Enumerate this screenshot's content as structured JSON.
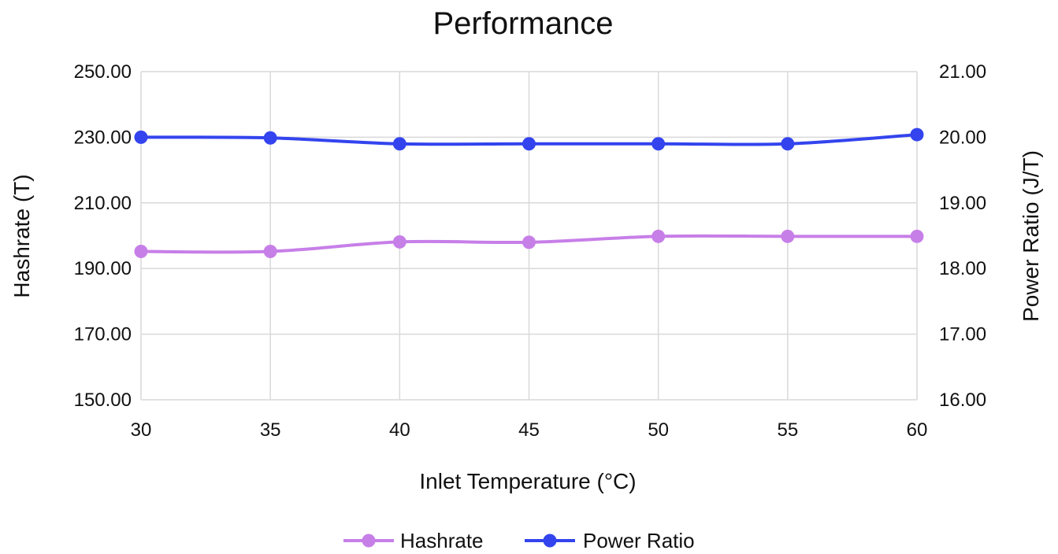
{
  "chart_data": {
    "type": "line",
    "title": "Performance",
    "xlabel": "Inlet Temperature (°C)",
    "ylabel": "Hashrate (T)",
    "y2label": "Power Ratio (J/T)",
    "x": [
      30,
      35,
      40,
      45,
      50,
      55,
      60
    ],
    "x_ticks": [
      "30",
      "35",
      "40",
      "45",
      "50",
      "55",
      "60"
    ],
    "xlim": [
      30,
      60
    ],
    "ylim": [
      150,
      250
    ],
    "y_ticks": [
      "150.00",
      "170.00",
      "190.00",
      "210.00",
      "230.00",
      "250.00"
    ],
    "y2lim": [
      16,
      21
    ],
    "y2_ticks": [
      "16.00",
      "17.00",
      "18.00",
      "19.00",
      "20.00",
      "21.00"
    ],
    "grid": true,
    "legend_position": "bottom",
    "series": [
      {
        "name": "Hashrate",
        "axis": "left",
        "color": "#c77fe8",
        "values": [
          195.2,
          195.2,
          198.1,
          198.0,
          199.8,
          199.8,
          199.8
        ]
      },
      {
        "name": "Power Ratio",
        "axis": "right",
        "color": "#3344ee",
        "values": [
          20.0,
          19.99,
          19.9,
          19.9,
          19.9,
          19.9,
          20.04
        ]
      }
    ]
  }
}
